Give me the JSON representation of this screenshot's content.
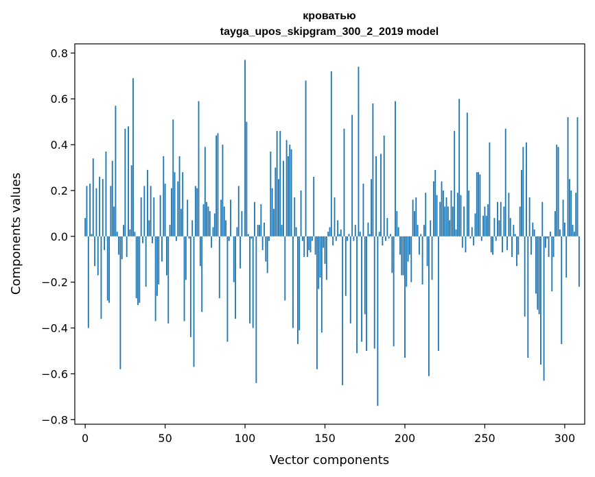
{
  "chart_data": {
    "type": "bar",
    "title": "кроватью",
    "subtitle": "tayga_upos_skipgram_300_2_2019 model",
    "xlabel": "Vector components",
    "ylabel": "Components values",
    "xlim": [
      -6.5,
      312.5
    ],
    "ylim": [
      -0.82,
      0.84
    ],
    "xticks": [
      0,
      50,
      100,
      150,
      200,
      250,
      300
    ],
    "xtick_labels": [
      "0",
      "50",
      "100",
      "150",
      "200",
      "250",
      "300"
    ],
    "yticks": [
      -0.8,
      -0.6,
      -0.4,
      -0.2,
      0.0,
      0.2,
      0.4,
      0.6,
      0.8
    ],
    "ytick_labels": [
      "−0.8",
      "−0.6",
      "−0.4",
      "−0.2",
      "0.0",
      "0.2",
      "0.4",
      "0.6",
      "0.8"
    ],
    "grid": false,
    "bar_color": "#1f77b4",
    "values": [
      0.08,
      0.22,
      -0.4,
      0.23,
      0.01,
      0.34,
      -0.13,
      0.21,
      -0.17,
      0.26,
      -0.36,
      0.25,
      -0.06,
      0.37,
      -0.28,
      -0.29,
      0.22,
      0.33,
      0.13,
      0.57,
      0.02,
      -0.08,
      -0.58,
      -0.1,
      0.05,
      0.47,
      -0.09,
      0.48,
      0.03,
      0.31,
      0.69,
      0.02,
      -0.27,
      -0.3,
      -0.29,
      0.17,
      -0.03,
      0.22,
      -0.22,
      0.29,
      0.07,
      0.22,
      -0.03,
      0.17,
      -0.37,
      -0.26,
      -0.21,
      0.18,
      -0.11,
      0.35,
      0.23,
      -0.17,
      -0.38,
      0.05,
      0.21,
      0.51,
      0.28,
      -0.02,
      0.24,
      0.35,
      0.12,
      0.28,
      -0.37,
      -0.19,
      0.16,
      -0.01,
      -0.44,
      0.07,
      -0.57,
      0.22,
      0.21,
      0.59,
      -0.13,
      -0.33,
      0.14,
      0.39,
      0.15,
      0.13,
      0.11,
      -0.05,
      0.04,
      0.1,
      0.44,
      0.45,
      -0.27,
      0.16,
      0.4,
      0.13,
      0.07,
      -0.46,
      -0.02,
      0.16,
      0.0,
      -0.2,
      -0.36,
      0.04,
      0.22,
      -0.14,
      0.11,
      0.0,
      0.77,
      0.5,
      0.01,
      -0.38,
      -0.01,
      -0.4,
      0.15,
      -0.64,
      0.05,
      0.05,
      0.14,
      -0.06,
      0.06,
      -0.11,
      -0.16,
      -0.02,
      0.37,
      0.21,
      0.12,
      0.3,
      0.46,
      0.25,
      0.46,
      0.05,
      0.33,
      -0.28,
      0.42,
      0.35,
      0.4,
      0.38,
      -0.4,
      0.17,
      0.04,
      -0.47,
      -0.41,
      0.2,
      -0.02,
      -0.09,
      0.68,
      -0.09,
      -0.06,
      -0.07,
      -0.02,
      0.26,
      -0.08,
      -0.58,
      -0.23,
      -0.18,
      -0.42,
      -0.05,
      -0.12,
      -0.19,
      0.02,
      0.04,
      0.72,
      -0.04,
      0.17,
      -0.02,
      0.07,
      0.01,
      0.03,
      -0.65,
      0.47,
      -0.26,
      -0.02,
      0.01,
      -0.38,
      0.53,
      -0.02,
      0.05,
      -0.51,
      0.74,
      0.02,
      -0.46,
      0.23,
      -0.34,
      -0.5,
      0.06,
      0.01,
      0.25,
      0.58,
      -0.49,
      0.35,
      -0.74,
      0.02,
      0.36,
      -0.04,
      0.44,
      -0.02,
      0.08,
      -0.01,
      0.01,
      -0.16,
      -0.48,
      0.59,
      0.11,
      0.04,
      -0.08,
      -0.17,
      -0.17,
      -0.53,
      -0.22,
      -0.11,
      -0.08,
      -0.2,
      0.16,
      0.11,
      0.17,
      0.05,
      -0.08,
      0.01,
      -0.21,
      0.05,
      0.19,
      -0.13,
      -0.61,
      0.07,
      -0.19,
      0.24,
      0.29,
      0.18,
      -0.5,
      0.15,
      0.24,
      0.2,
      0.13,
      0.17,
      0.13,
      0.07,
      0.2,
      0.13,
      0.46,
      0.03,
      0.19,
      0.6,
      0.18,
      -0.05,
      0.13,
      -0.07,
      0.54,
      0.2,
      -0.01,
      0.04,
      -0.04,
      0.1,
      0.28,
      0.28,
      0.27,
      -0.02,
      0.09,
      0.13,
      0.09,
      0.14,
      0.41,
      -0.07,
      -0.08,
      0.08,
      -0.02,
      0.15,
      0.07,
      0.15,
      -0.07,
      0.13,
      0.47,
      -0.06,
      0.19,
      0.08,
      -0.09,
      0.05,
      0.01,
      -0.13,
      -0.08,
      0.13,
      0.29,
      0.39,
      -0.35,
      0.41,
      -0.53,
      0.17,
      -0.08,
      0.06,
      0.03,
      -0.25,
      -0.32,
      -0.34,
      -0.56,
      0.15,
      -0.63,
      -0.05,
      -0.01,
      -0.09,
      0.02,
      -0.24,
      -0.09,
      0.11,
      0.4,
      0.39,
      0.03,
      -0.47,
      0.16,
      0.06,
      -0.18,
      0.52,
      0.25,
      0.2,
      0.05,
      0.02,
      0.19,
      0.52,
      -0.22
    ]
  }
}
